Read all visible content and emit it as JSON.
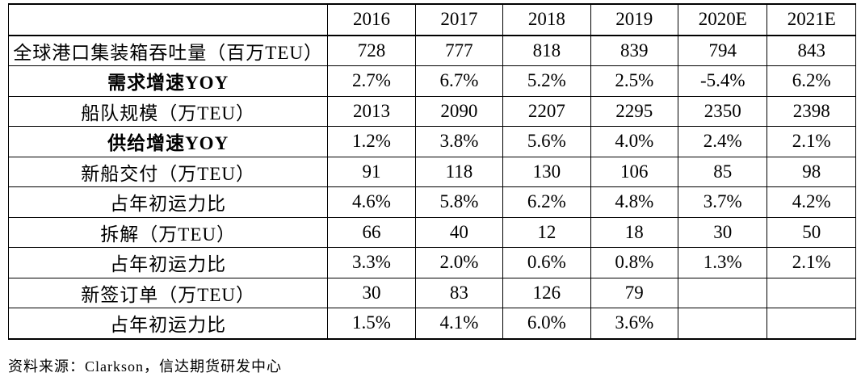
{
  "table": {
    "corner_label": "",
    "columns": [
      "2016",
      "2017",
      "2018",
      "2019",
      "2020E",
      "2021E"
    ],
    "rows": [
      {
        "label": "全球港口集装箱吞吐量（百万TEU）",
        "bold": false,
        "values": [
          "728",
          "777",
          "818",
          "839",
          "794",
          "843"
        ]
      },
      {
        "label": "需求增速YOY",
        "bold": true,
        "values": [
          "2.7%",
          "6.7%",
          "5.2%",
          "2.5%",
          "-5.4%",
          "6.2%"
        ]
      },
      {
        "label": "船队规模（万TEU）",
        "bold": false,
        "values": [
          "2013",
          "2090",
          "2207",
          "2295",
          "2350",
          "2398"
        ]
      },
      {
        "label": "供给增速YOY",
        "bold": true,
        "values": [
          "1.2%",
          "3.8%",
          "5.6%",
          "4.0%",
          "2.4%",
          "2.1%"
        ]
      },
      {
        "label": "新船交付（万TEU）",
        "bold": false,
        "values": [
          "91",
          "118",
          "130",
          "106",
          "85",
          "98"
        ]
      },
      {
        "label": "占年初运力比",
        "bold": false,
        "values": [
          "4.6%",
          "5.8%",
          "6.2%",
          "4.8%",
          "3.7%",
          "4.2%"
        ]
      },
      {
        "label": "拆解（万TEU）",
        "bold": false,
        "values": [
          "66",
          "40",
          "12",
          "18",
          "30",
          "50"
        ]
      },
      {
        "label": "占年初运力比",
        "bold": false,
        "values": [
          "3.3%",
          "2.0%",
          "0.6%",
          "0.8%",
          "1.3%",
          "2.1%"
        ]
      },
      {
        "label": "新签订单（万TEU）",
        "bold": false,
        "values": [
          "30",
          "83",
          "126",
          "79",
          "",
          ""
        ]
      },
      {
        "label": "占年初运力比",
        "bold": false,
        "values": [
          "1.5%",
          "4.1%",
          "6.0%",
          "3.6%",
          "",
          ""
        ]
      }
    ]
  },
  "source": "资料来源：Clarkson，信达期货研发中心"
}
